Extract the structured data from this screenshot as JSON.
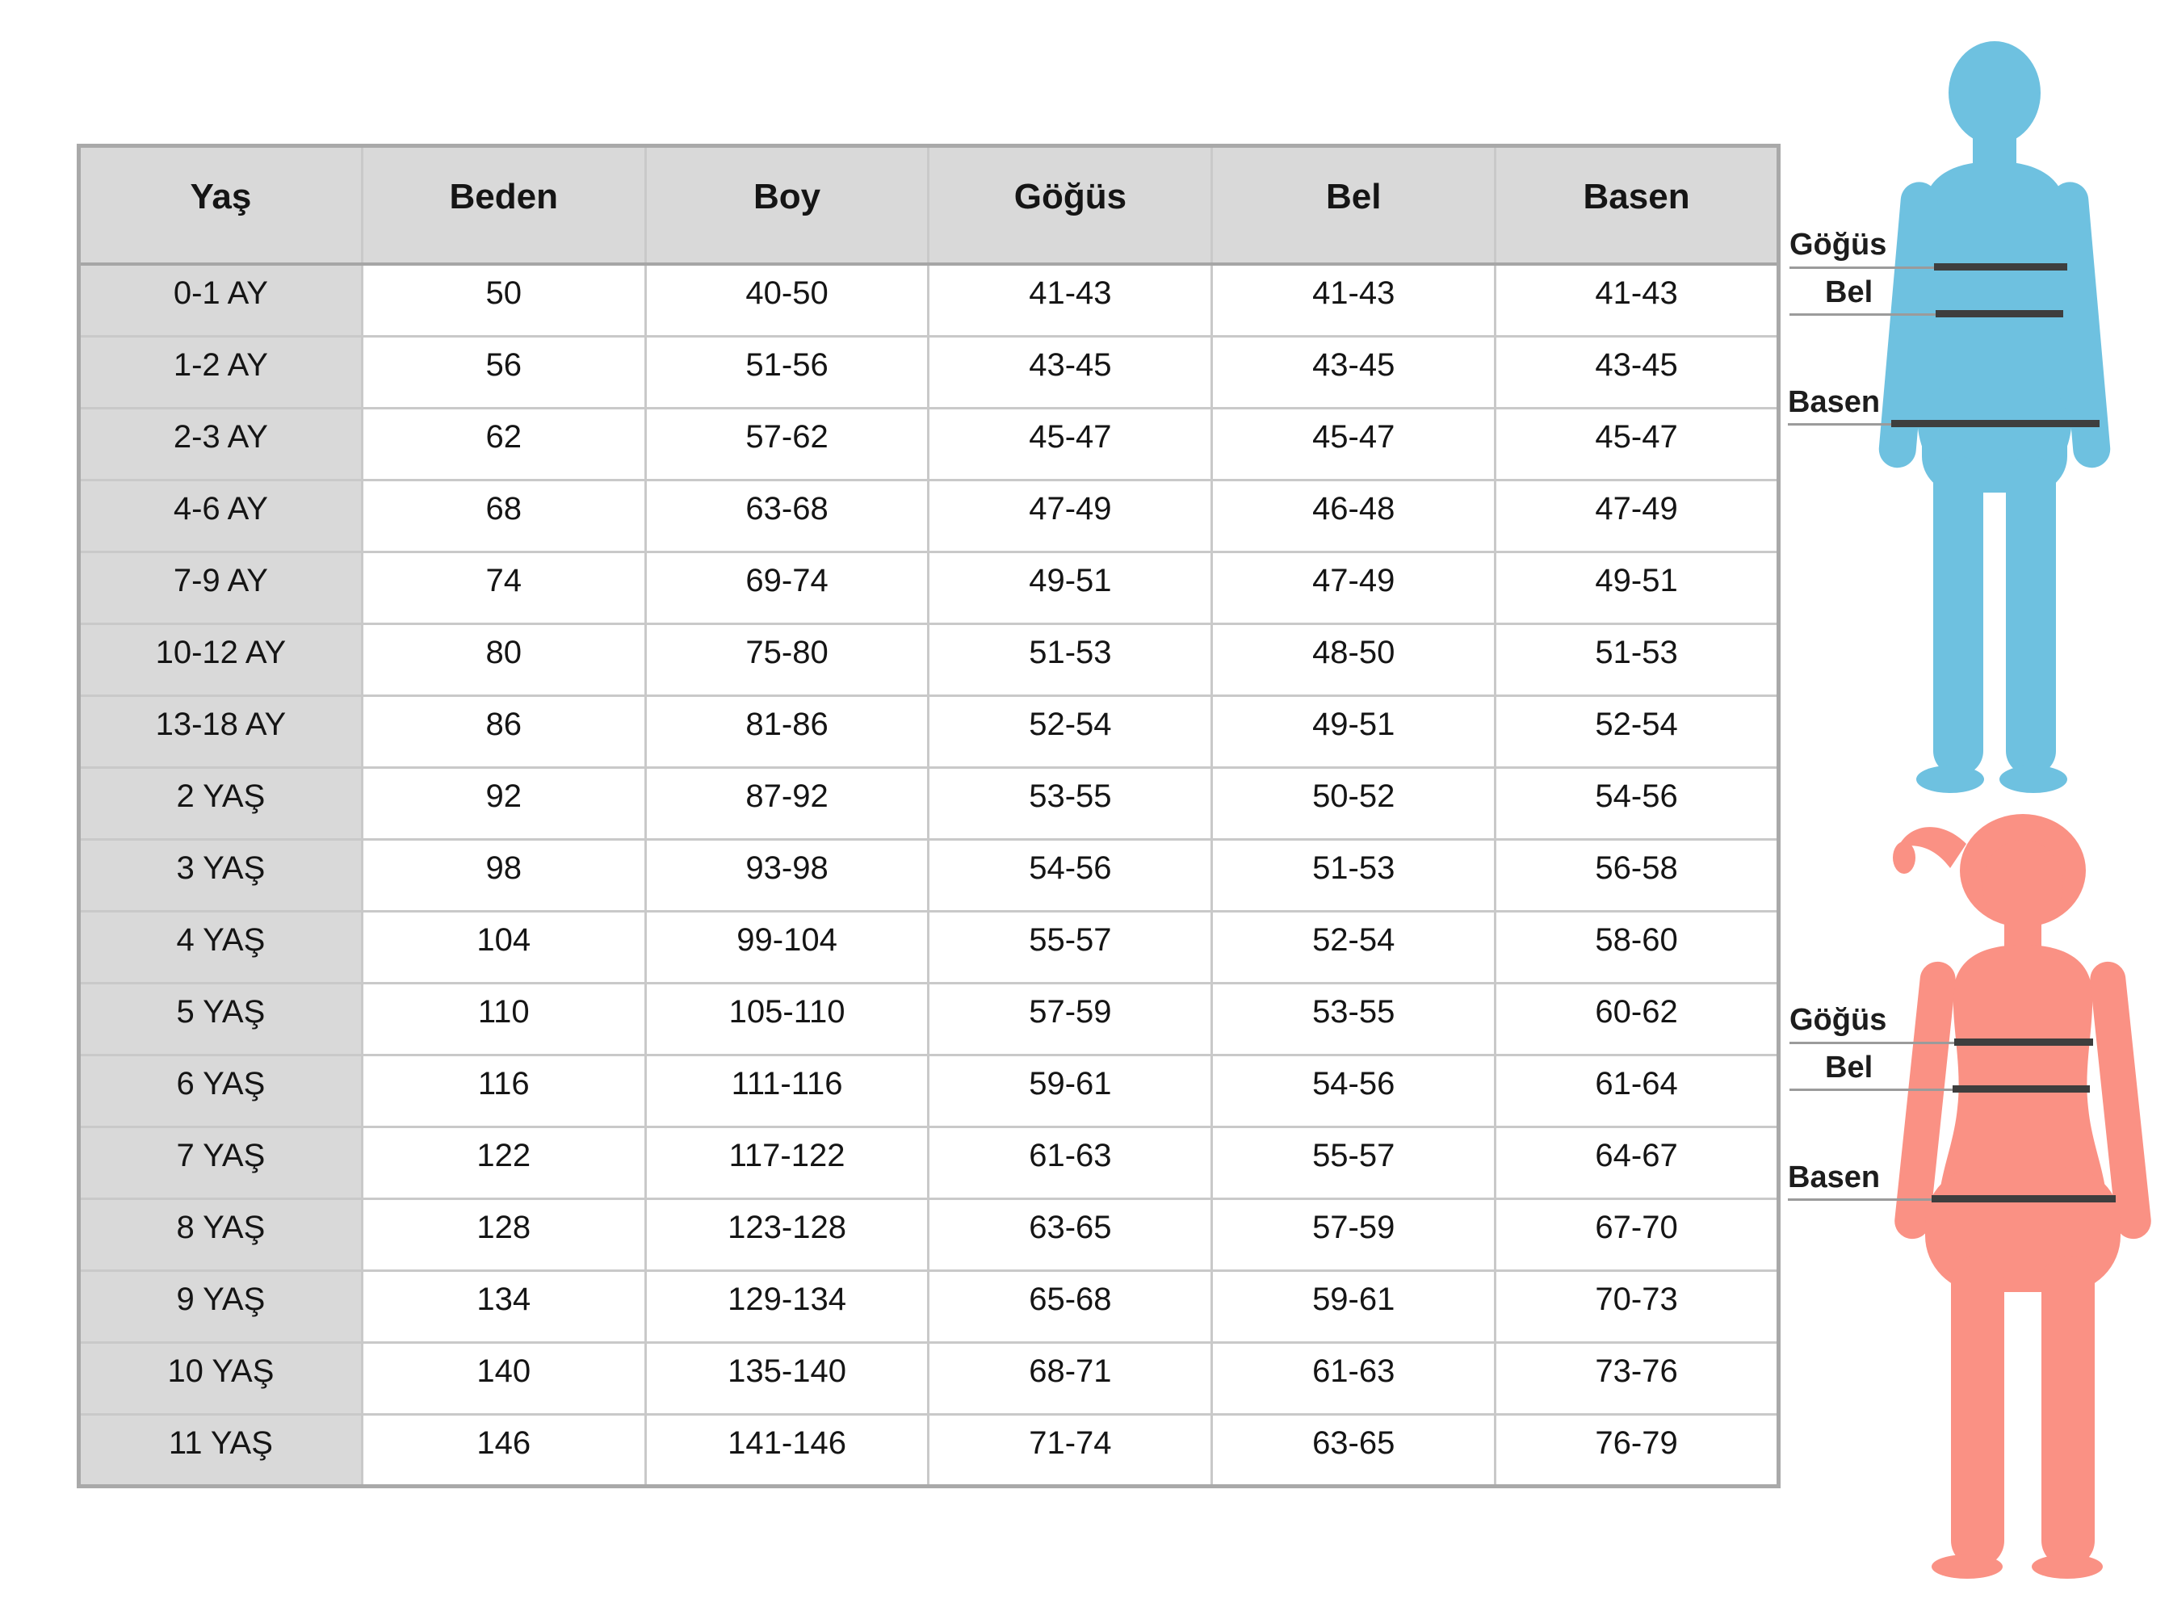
{
  "chart_data": {
    "type": "table",
    "title": "",
    "columns": [
      "Yaş",
      "Beden",
      "Boy",
      "Göğüs",
      "Bel",
      "Basen"
    ],
    "rows": [
      [
        "0-1 AY",
        "50",
        "40-50",
        "41-43",
        "41-43",
        "41-43"
      ],
      [
        "1-2 AY",
        "56",
        "51-56",
        "43-45",
        "43-45",
        "43-45"
      ],
      [
        "2-3 AY",
        "62",
        "57-62",
        "45-47",
        "45-47",
        "45-47"
      ],
      [
        "4-6 AY",
        "68",
        "63-68",
        "47-49",
        "46-48",
        "47-49"
      ],
      [
        "7-9 AY",
        "74",
        "69-74",
        "49-51",
        "47-49",
        "49-51"
      ],
      [
        "10-12 AY",
        "80",
        "75-80",
        "51-53",
        "48-50",
        "51-53"
      ],
      [
        "13-18 AY",
        "86",
        "81-86",
        "52-54",
        "49-51",
        "52-54"
      ],
      [
        "2 YAŞ",
        "92",
        "87-92",
        "53-55",
        "50-52",
        "54-56"
      ],
      [
        "3 YAŞ",
        "98",
        "93-98",
        "54-56",
        "51-53",
        "56-58"
      ],
      [
        "4 YAŞ",
        "104",
        "99-104",
        "55-57",
        "52-54",
        "58-60"
      ],
      [
        "5 YAŞ",
        "110",
        "105-110",
        "57-59",
        "53-55",
        "60-62"
      ],
      [
        "6 YAŞ",
        "116",
        "111-116",
        "59-61",
        "54-56",
        "61-64"
      ],
      [
        "7 YAŞ",
        "122",
        "117-122",
        "61-63",
        "55-57",
        "64-67"
      ],
      [
        "8 YAŞ",
        "128",
        "123-128",
        "63-65",
        "57-59",
        "67-70"
      ],
      [
        "9 YAŞ",
        "134",
        "129-134",
        "65-68",
        "59-61",
        "70-73"
      ],
      [
        "10 YAŞ",
        "140",
        "135-140",
        "68-71",
        "61-63",
        "73-76"
      ],
      [
        "11 YAŞ",
        "146",
        "141-146",
        "71-74",
        "63-65",
        "76-79"
      ]
    ],
    "legend_position": "none",
    "grid": true
  },
  "figures": {
    "boy": {
      "measurements": [
        {
          "label": "Göğüs"
        },
        {
          "label": "Bel"
        },
        {
          "label": "Basen"
        }
      ]
    },
    "girl": {
      "measurements": [
        {
          "label": "Göğüs"
        },
        {
          "label": "Bel"
        },
        {
          "label": "Basen"
        }
      ]
    }
  },
  "colors": {
    "boy_silhouette": "#6ec1e0",
    "girl_silhouette": "#fa9184",
    "measure_line_thick": "#3e3e3e",
    "measure_line_thin": "#9b9b9b",
    "header_bg": "#d9d9d9",
    "row_label_bg": "#d9d9d9",
    "table_border": "#a9a9a9"
  }
}
